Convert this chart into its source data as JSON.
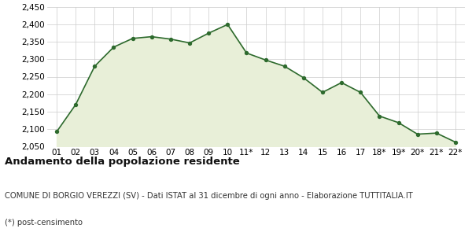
{
  "x_labels": [
    "01",
    "02",
    "03",
    "04",
    "05",
    "06",
    "07",
    "08",
    "09",
    "10",
    "11*",
    "12",
    "13",
    "14",
    "15",
    "16",
    "17",
    "18*",
    "19*",
    "20*",
    "21*",
    "22*"
  ],
  "y_values": [
    2092,
    2170,
    2280,
    2335,
    2360,
    2365,
    2358,
    2347,
    2375,
    2400,
    2318,
    2298,
    2280,
    2247,
    2205,
    2233,
    2205,
    2137,
    2118,
    2085,
    2088,
    2062
  ],
  "line_color": "#2d6a2d",
  "fill_color": "#e8efd8",
  "marker_color": "#2d6a2d",
  "background_color": "#ffffff",
  "grid_color": "#cccccc",
  "ylim": [
    2050,
    2450
  ],
  "yticks": [
    2050,
    2100,
    2150,
    2200,
    2250,
    2300,
    2350,
    2400,
    2450
  ],
  "title": "Andamento della popolazione residente",
  "subtitle": "COMUNE DI BORGIO VEREZZI (SV) - Dati ISTAT al 31 dicembre di ogni anno - Elaborazione TUTTITALIA.IT",
  "footnote": "(*) post-censimento",
  "title_fontsize": 9.5,
  "subtitle_fontsize": 7.2,
  "footnote_fontsize": 7.2,
  "tick_fontsize": 7.5
}
